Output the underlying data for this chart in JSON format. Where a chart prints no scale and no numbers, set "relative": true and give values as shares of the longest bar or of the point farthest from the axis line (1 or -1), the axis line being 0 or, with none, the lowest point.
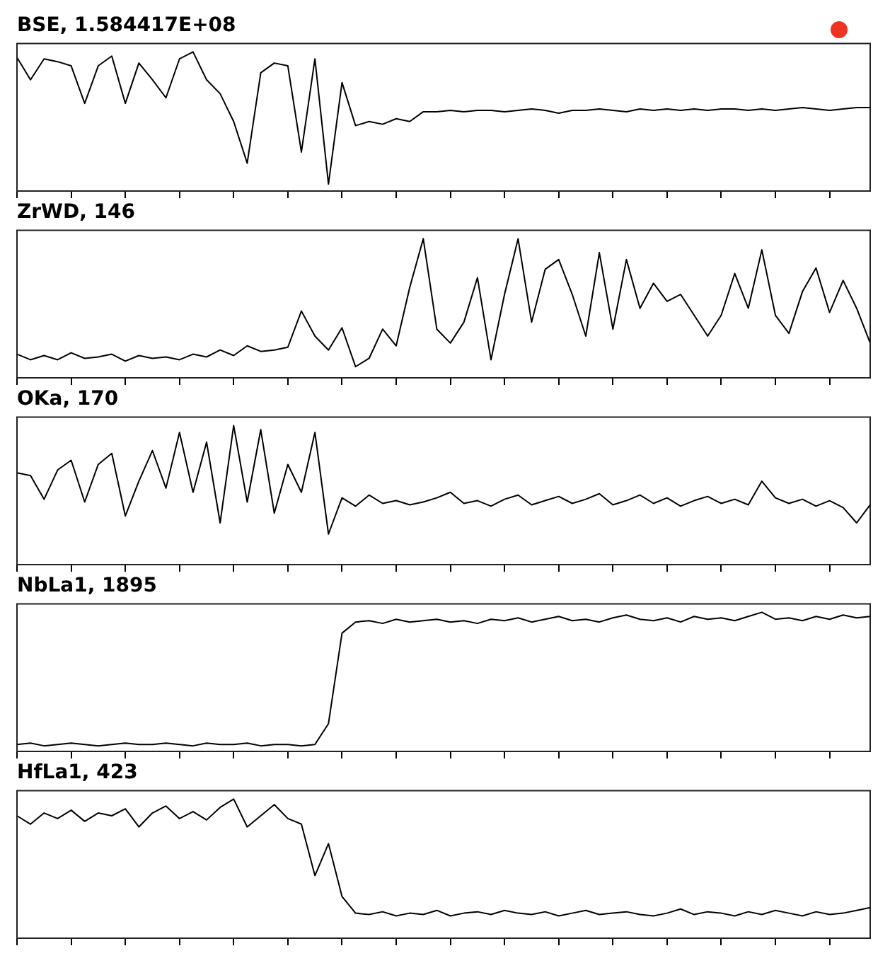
{
  "chart_data": [
    {
      "type": "line",
      "title": "BSE, 1.584417E+08",
      "relative": true,
      "color": "#000000",
      "categories": [
        null,
        null,
        null,
        null,
        null,
        null,
        null,
        null,
        null,
        null,
        null,
        null,
        null,
        null,
        null,
        null,
        null,
        null,
        null,
        null,
        null,
        null,
        null,
        null,
        null,
        null,
        null,
        null,
        null,
        null,
        null,
        null,
        null,
        null,
        null,
        null,
        null,
        null,
        null,
        null,
        null,
        null,
        null,
        null,
        null,
        null,
        null,
        null,
        null,
        null,
        null,
        null,
        null,
        null,
        null,
        null,
        null,
        null,
        null,
        null,
        null,
        null,
        null,
        null
      ],
      "values": [
        0.96,
        0.8,
        0.95,
        0.93,
        0.9,
        0.63,
        0.9,
        0.97,
        0.63,
        0.92,
        0.8,
        0.67,
        0.95,
        1.0,
        0.8,
        0.7,
        0.5,
        0.2,
        0.85,
        0.92,
        0.9,
        0.28,
        0.95,
        0.05,
        0.78,
        0.47,
        0.5,
        0.48,
        0.52,
        0.5,
        0.57,
        0.57,
        0.58,
        0.57,
        0.58,
        0.58,
        0.57,
        0.58,
        0.59,
        0.58,
        0.56,
        0.58,
        0.58,
        0.59,
        0.58,
        0.57,
        0.59,
        0.58,
        0.59,
        0.58,
        0.59,
        0.58,
        0.59,
        0.59,
        0.58,
        0.59,
        0.58,
        0.59,
        0.6,
        0.59,
        0.58,
        0.59,
        0.6,
        0.6
      ]
    },
    {
      "type": "line",
      "title": "ZrWD, 146",
      "relative": true,
      "color": "#000000",
      "categories": [
        null,
        null,
        null,
        null,
        null,
        null,
        null,
        null,
        null,
        null,
        null,
        null,
        null,
        null,
        null,
        null,
        null,
        null,
        null,
        null,
        null,
        null,
        null,
        null,
        null,
        null,
        null,
        null,
        null,
        null,
        null,
        null,
        null,
        null,
        null,
        null,
        null,
        null,
        null,
        null,
        null,
        null,
        null,
        null,
        null,
        null,
        null,
        null,
        null,
        null,
        null,
        null,
        null,
        null,
        null,
        null,
        null,
        null,
        null,
        null,
        null,
        null,
        null,
        null
      ],
      "values": [
        0.17,
        0.13,
        0.16,
        0.13,
        0.18,
        0.14,
        0.15,
        0.17,
        0.12,
        0.16,
        0.14,
        0.15,
        0.13,
        0.17,
        0.15,
        0.2,
        0.16,
        0.23,
        0.19,
        0.2,
        0.22,
        0.48,
        0.3,
        0.2,
        0.36,
        0.08,
        0.14,
        0.35,
        0.23,
        0.65,
        1.0,
        0.35,
        0.25,
        0.4,
        0.72,
        0.13,
        0.6,
        1.0,
        0.4,
        0.78,
        0.85,
        0.6,
        0.3,
        0.9,
        0.35,
        0.85,
        0.5,
        0.68,
        0.55,
        0.6,
        0.45,
        0.3,
        0.45,
        0.75,
        0.5,
        0.92,
        0.45,
        0.32,
        0.62,
        0.79,
        0.47,
        0.7,
        0.5,
        0.25
      ]
    },
    {
      "type": "line",
      "title": "OKa, 170",
      "relative": true,
      "color": "#000000",
      "categories": [
        null,
        null,
        null,
        null,
        null,
        null,
        null,
        null,
        null,
        null,
        null,
        null,
        null,
        null,
        null,
        null,
        null,
        null,
        null,
        null,
        null,
        null,
        null,
        null,
        null,
        null,
        null,
        null,
        null,
        null,
        null,
        null,
        null,
        null,
        null,
        null,
        null,
        null,
        null,
        null,
        null,
        null,
        null,
        null,
        null,
        null,
        null,
        null,
        null,
        null,
        null,
        null,
        null,
        null,
        null,
        null,
        null,
        null,
        null,
        null,
        null,
        null,
        null,
        null
      ],
      "values": [
        0.66,
        0.64,
        0.47,
        0.68,
        0.75,
        0.45,
        0.72,
        0.8,
        0.35,
        0.6,
        0.82,
        0.55,
        0.95,
        0.52,
        0.88,
        0.3,
        1.0,
        0.45,
        0.97,
        0.37,
        0.72,
        0.52,
        0.95,
        0.22,
        0.48,
        0.42,
        0.5,
        0.44,
        0.46,
        0.43,
        0.45,
        0.48,
        0.52,
        0.44,
        0.46,
        0.42,
        0.47,
        0.5,
        0.43,
        0.46,
        0.49,
        0.44,
        0.47,
        0.51,
        0.43,
        0.46,
        0.5,
        0.44,
        0.48,
        0.42,
        0.46,
        0.49,
        0.44,
        0.47,
        0.43,
        0.6,
        0.48,
        0.44,
        0.47,
        0.42,
        0.46,
        0.41,
        0.3,
        0.43
      ]
    },
    {
      "type": "line",
      "title": "NbLa1, 1895",
      "relative": true,
      "color": "#000000",
      "categories": [
        null,
        null,
        null,
        null,
        null,
        null,
        null,
        null,
        null,
        null,
        null,
        null,
        null,
        null,
        null,
        null,
        null,
        null,
        null,
        null,
        null,
        null,
        null,
        null,
        null,
        null,
        null,
        null,
        null,
        null,
        null,
        null,
        null,
        null,
        null,
        null,
        null,
        null,
        null,
        null,
        null,
        null,
        null,
        null,
        null,
        null,
        null,
        null,
        null,
        null,
        null,
        null,
        null,
        null,
        null,
        null,
        null,
        null,
        null,
        null,
        null,
        null,
        null,
        null
      ],
      "values": [
        0.05,
        0.06,
        0.04,
        0.05,
        0.06,
        0.05,
        0.04,
        0.05,
        0.06,
        0.05,
        0.05,
        0.06,
        0.05,
        0.04,
        0.06,
        0.05,
        0.05,
        0.06,
        0.04,
        0.05,
        0.05,
        0.04,
        0.05,
        0.2,
        0.85,
        0.93,
        0.94,
        0.92,
        0.95,
        0.93,
        0.94,
        0.95,
        0.93,
        0.94,
        0.92,
        0.95,
        0.94,
        0.96,
        0.93,
        0.95,
        0.97,
        0.94,
        0.95,
        0.93,
        0.96,
        0.98,
        0.95,
        0.94,
        0.96,
        0.93,
        0.97,
        0.95,
        0.96,
        0.94,
        0.97,
        1.0,
        0.95,
        0.96,
        0.94,
        0.97,
        0.95,
        0.98,
        0.96,
        0.97
      ]
    },
    {
      "type": "line",
      "title": "HfLa1, 423",
      "relative": true,
      "color": "#000000",
      "categories": [
        null,
        null,
        null,
        null,
        null,
        null,
        null,
        null,
        null,
        null,
        null,
        null,
        null,
        null,
        null,
        null,
        null,
        null,
        null,
        null,
        null,
        null,
        null,
        null,
        null,
        null,
        null,
        null,
        null,
        null,
        null,
        null,
        null,
        null,
        null,
        null,
        null,
        null,
        null,
        null,
        null,
        null,
        null,
        null,
        null,
        null,
        null,
        null,
        null,
        null,
        null,
        null,
        null,
        null,
        null,
        null,
        null,
        null,
        null,
        null,
        null,
        null,
        null,
        null
      ],
      "values": [
        0.88,
        0.82,
        0.9,
        0.86,
        0.92,
        0.84,
        0.9,
        0.88,
        0.93,
        0.8,
        0.9,
        0.95,
        0.86,
        0.91,
        0.85,
        0.94,
        1.0,
        0.8,
        0.88,
        0.96,
        0.86,
        0.82,
        0.45,
        0.68,
        0.3,
        0.18,
        0.17,
        0.19,
        0.16,
        0.18,
        0.17,
        0.2,
        0.16,
        0.18,
        0.19,
        0.17,
        0.2,
        0.18,
        0.17,
        0.19,
        0.16,
        0.18,
        0.2,
        0.17,
        0.18,
        0.19,
        0.17,
        0.16,
        0.18,
        0.21,
        0.17,
        0.19,
        0.18,
        0.16,
        0.19,
        0.17,
        0.2,
        0.18,
        0.16,
        0.19,
        0.17,
        0.18,
        0.2,
        0.22
      ]
    }
  ]
}
